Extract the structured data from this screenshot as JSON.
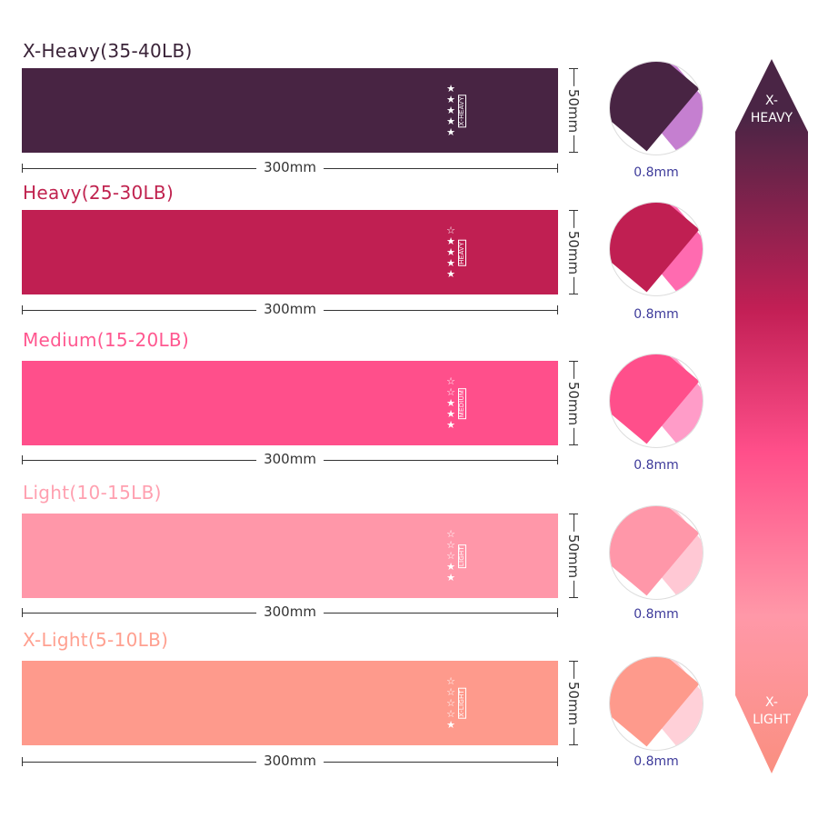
{
  "bands": [
    {
      "title": "X-Heavy(35-40LB)",
      "tag": "X-HEAVY",
      "stars_filled": 5,
      "stars_total": 5,
      "length": "300mm",
      "width": "50mm",
      "thickness": "0.8mm",
      "color": "#482443",
      "title_color": "#3a2338",
      "edge_color": "#c57fd0"
    },
    {
      "title": "Heavy(25-30LB)",
      "tag": "HEAVY",
      "stars_filled": 4,
      "stars_total": 5,
      "length": "300mm",
      "width": "50mm",
      "thickness": "0.8mm",
      "color": "#c01f52",
      "title_color": "#c0234f",
      "edge_color": "#ff6bb0"
    },
    {
      "title": "Medium(15-20LB)",
      "tag": "MEDIUM",
      "stars_filled": 3,
      "stars_total": 5,
      "length": "300mm",
      "width": "50mm",
      "thickness": "0.8mm",
      "color": "#ff4f8b",
      "title_color": "#ff5890",
      "edge_color": "#ff9cc8"
    },
    {
      "title": "Light(10-15LB)",
      "tag": "LIGHT",
      "stars_filled": 2,
      "stars_total": 5,
      "length": "300mm",
      "width": "50mm",
      "thickness": "0.8mm",
      "color": "#ff97a9",
      "title_color": "#ffa0b0",
      "edge_color": "#ffc8d4"
    },
    {
      "title": "X-Light(5-10LB)",
      "tag": "X-LIGHT",
      "stars_filled": 1,
      "stars_total": 5,
      "length": "300mm",
      "width": "50mm",
      "thickness": "0.8mm",
      "color": "#fe9a8c",
      "title_color": "#ffa090",
      "edge_color": "#ffd0d8"
    }
  ],
  "scale": {
    "top_label": "X-\nHEAVY",
    "top_line1": "X-",
    "top_line2": "HEAVY",
    "bottom_line1": "X-",
    "bottom_line2": "LIGHT",
    "gradient": [
      "#4a2545",
      "#c21f55",
      "#ff4f8a",
      "#ff98a8",
      "#fa8f80"
    ]
  }
}
